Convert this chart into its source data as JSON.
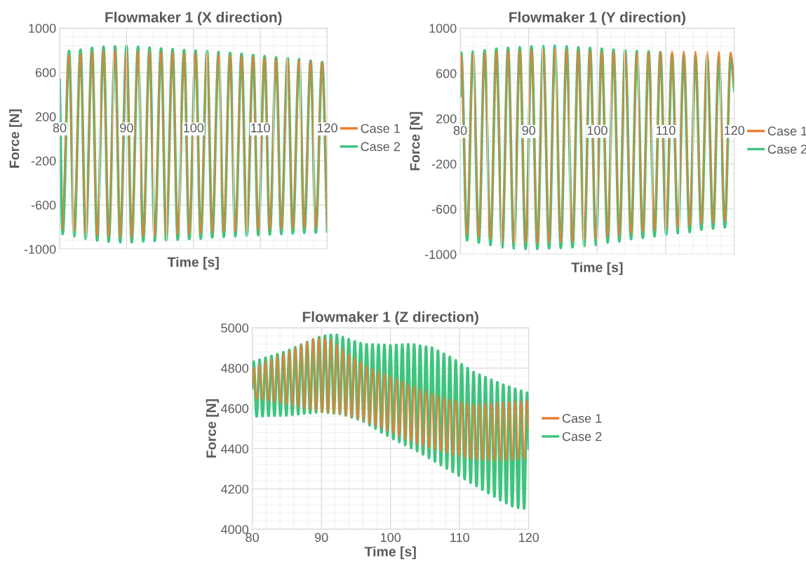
{
  "chart_data": [
    {
      "type": "line",
      "title": "Flowmaker 1 (X direction)",
      "xlabel": "Time [s]",
      "ylabel": "Force [N]",
      "xlim": [
        80,
        120
      ],
      "xticks": [
        80,
        90,
        100,
        110,
        120
      ],
      "ylim": [
        -1000,
        1000
      ],
      "yticks": [
        -1000,
        -600,
        -200,
        200,
        600,
        1000
      ],
      "grid": true,
      "legend": "right",
      "x": [
        80,
        80.45,
        81.4,
        82.17,
        83.12,
        83.89,
        84.84,
        85.61,
        86.56,
        87.33,
        88.28,
        89.05,
        90.0,
        90.77,
        91.72,
        92.49,
        93.44,
        94.21,
        95.16,
        95.93,
        96.88,
        97.65,
        98.6,
        99.37,
        100.32,
        101.09,
        102.04,
        102.81,
        103.76,
        104.53,
        105.48,
        106.25,
        107.2,
        107.97,
        108.92,
        109.69,
        110.64,
        111.41,
        112.36,
        113.13,
        114.08,
        114.85,
        115.8,
        116.57,
        117.52,
        118.29,
        119.24,
        120
      ],
      "series": [
        {
          "name": "Case 1",
          "color": "#ed7d31",
          "values": [
            null,
            -817,
            758,
            -839,
            770,
            -860,
            785,
            -877,
            796,
            -887,
            800,
            -892,
            802,
            -892,
            798,
            -885,
            792,
            -881,
            786,
            -875,
            782,
            -870,
            775,
            -864,
            772,
            -860,
            770,
            -850,
            763,
            -845,
            757,
            -841,
            750,
            -835,
            742,
            -831,
            733,
            -826,
            724,
            -822,
            720,
            -818,
            712,
            -813,
            700,
            -812,
            690,
            -810
          ]
        },
        {
          "name": "Case 2",
          "color": "#3ec47e",
          "values": [
            534,
            -862,
            793,
            -884,
            805,
            -905,
            820,
            -922,
            831,
            -932,
            835,
            -937,
            837,
            -937,
            831,
            -930,
            824,
            -926,
            816,
            -920,
            810,
            -915,
            801,
            -909,
            797,
            -905,
            793,
            -894,
            784,
            -888,
            776,
            -884,
            767,
            -877,
            757,
            -873,
            746,
            -867,
            735,
            -862,
            729,
            -858,
            719,
            -852,
            704,
            -850,
            693,
            -840
          ]
        }
      ]
    },
    {
      "type": "line",
      "title": "Flowmaker 1 (Y direction)",
      "xlabel": "Time [s]",
      "ylabel": "Force [N]",
      "xlim": [
        80,
        120
      ],
      "xticks": [
        80,
        90,
        100,
        110,
        120
      ],
      "ylim": [
        -1000,
        1000
      ],
      "yticks": [
        -1000,
        -600,
        -200,
        200,
        600,
        1000
      ],
      "grid": true,
      "legend": "right",
      "x": [
        80,
        80.14,
        81.0,
        81.85,
        82.71,
        83.56,
        84.42,
        85.27,
        86.13,
        86.98,
        87.84,
        88.69,
        89.55,
        90.4,
        91.26,
        92.11,
        92.97,
        93.82,
        94.68,
        95.53,
        96.39,
        97.24,
        98.1,
        98.95,
        99.81,
        100.66,
        101.52,
        102.37,
        103.23,
        104.08,
        104.94,
        105.79,
        106.65,
        107.5,
        108.36,
        109.21,
        110.07,
        110.92,
        111.78,
        112.63,
        113.49,
        114.34,
        115.2,
        116.05,
        116.91,
        117.76,
        118.62,
        119.47,
        120
      ],
      "series": [
        {
          "name": "Case 1",
          "color": "#ed7d31",
          "values": [
            420,
            760,
            -826,
            770,
            -846,
            780,
            -867,
            795,
            -888,
            800,
            -898,
            805,
            -902,
            812,
            -902,
            816,
            -898,
            818,
            -894,
            812,
            -888,
            806,
            -877,
            800,
            -867,
            795,
            -846,
            790,
            -836,
            785,
            -815,
            782,
            -805,
            785,
            -790,
            790,
            -774,
            795,
            -763,
            795,
            -753,
            793,
            -732,
            793,
            -722,
            790,
            -712,
            788,
            480
          ]
        },
        {
          "name": "Case 2",
          "color": "#3ec47e",
          "values": [
            400,
            782,
            -876,
            793,
            -896,
            803,
            -917,
            818,
            -938,
            824,
            -948,
            830,
            -952,
            838,
            -952,
            842,
            -948,
            845,
            -944,
            838,
            -938,
            830,
            -927,
            824,
            -917,
            818,
            -896,
            809,
            -886,
            803,
            -865,
            797,
            -855,
            793,
            -840,
            787,
            -824,
            770,
            -813,
            762,
            -803,
            755,
            -782,
            752,
            -772,
            750,
            -762,
            755,
            450
          ]
        }
      ]
    },
    {
      "type": "line",
      "title": "Flowmaker 1 (Z direction)",
      "xlabel": "Time [s]",
      "ylabel": "Force [N]",
      "xlim": [
        80,
        120
      ],
      "xticks": [
        80,
        90,
        100,
        110,
        120
      ],
      "ylim": [
        4000,
        5000
      ],
      "yticks": [
        4000,
        4200,
        4400,
        4600,
        4800,
        5000
      ],
      "grid": true,
      "legend": "right",
      "x": [
        80,
        80.2,
        80.63,
        81.06,
        81.49,
        81.92,
        82.35,
        82.78,
        83.21,
        83.64,
        84.07,
        84.5,
        84.93,
        85.36,
        85.79,
        86.22,
        86.65,
        87.08,
        87.51,
        87.94,
        88.37,
        88.8,
        89.23,
        89.66,
        90.09,
        90.52,
        90.95,
        91.38,
        91.81,
        92.24,
        92.67,
        93.1,
        93.53,
        93.96,
        94.39,
        94.82,
        95.25,
        95.68,
        96.11,
        96.54,
        96.97,
        97.4,
        97.83,
        98.26,
        98.69,
        99.12,
        99.55,
        99.98,
        100.41,
        100.84,
        101.27,
        101.7,
        102.13,
        102.56,
        102.99,
        103.42,
        103.85,
        104.28,
        104.71,
        105.14,
        105.57,
        106.0,
        106.43,
        106.86,
        107.29,
        107.72,
        108.15,
        108.58,
        109.01,
        109.44,
        109.87,
        110.3,
        110.73,
        111.16,
        111.59,
        112.02,
        112.45,
        112.88,
        113.31,
        113.74,
        114.17,
        114.6,
        115.03,
        115.46,
        115.89,
        116.32,
        116.75,
        117.18,
        117.61,
        118.04,
        118.47,
        118.9,
        119.33,
        119.76,
        120
      ],
      "series": [
        {
          "name": "Case 1",
          "color": "#ed7d31",
          "values": [
            4720,
            4803,
            4646,
            4817,
            4641,
            4831,
            4636,
            4844,
            4631,
            4858,
            4626,
            4872,
            4620,
            4886,
            4614,
            4901,
            4607,
            4916,
            4600,
            4931,
            4593,
            4947,
            4586,
            4950,
            4580,
            4950,
            4577,
            4940,
            4574,
            4917,
            4571,
            4894,
            4565,
            4871,
            4556,
            4851,
            4548,
            4831,
            4538,
            4811,
            4525,
            4795,
            4512,
            4783,
            4500,
            4772,
            4487,
            4760,
            4474,
            4747,
            4461,
            4735,
            4448,
            4722,
            4435,
            4709,
            4422,
            4697,
            4413,
            4686,
            4404,
            4675,
            4396,
            4664,
            4387,
            4654,
            4379,
            4646,
            4370,
            4639,
            4361,
            4633,
            4353,
            4626,
            4348,
            4620,
            4345,
            4622,
            4342,
            4624,
            4340,
            4627,
            4340,
            4629,
            4340,
            4631,
            4340,
            4633,
            4342,
            4635,
            4345,
            4637,
            4348,
            4639,
            4500
          ]
        },
        {
          "name": "Case 2",
          "color": "#3ec47e",
          "values": [
            4700,
            4832,
            4560,
            4841,
            4561,
            4851,
            4562,
            4860,
            4563,
            4869,
            4564,
            4879,
            4565,
            4890,
            4568,
            4903,
            4571,
            4916,
            4574,
            4929,
            4576,
            4942,
            4579,
            4954,
            4582,
            4961,
            4578,
            4965,
            4575,
            4965,
            4572,
            4954,
            4565,
            4943,
            4555,
            4933,
            4545,
            4923,
            4534,
            4918,
            4516,
            4917,
            4499,
            4916,
            4481,
            4915,
            4464,
            4913,
            4448,
            4915,
            4433,
            4916,
            4418,
            4918,
            4403,
            4917,
            4388,
            4911,
            4371,
            4906,
            4353,
            4901,
            4336,
            4886,
            4318,
            4871,
            4301,
            4856,
            4284,
            4839,
            4266,
            4819,
            4249,
            4800,
            4231,
            4780,
            4214,
            4767,
            4196,
            4755,
            4179,
            4742,
            4162,
            4730,
            4144,
            4718,
            4129,
            4708,
            4114,
            4698,
            4106,
            4688,
            4103,
            4678,
            4400
          ]
        }
      ]
    }
  ]
}
